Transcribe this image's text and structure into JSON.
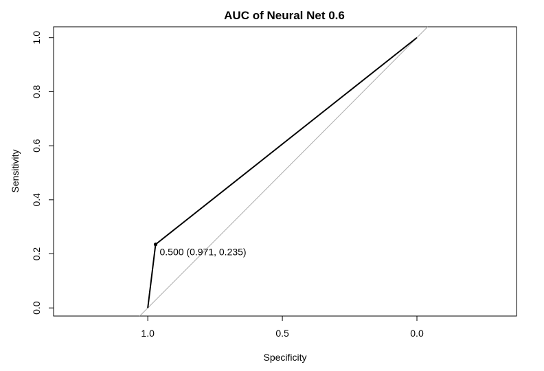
{
  "chart_data": {
    "type": "line",
    "title": "AUC of Neural Net 0.6",
    "xlabel": "Specificity",
    "ylabel": "Sensitivity",
    "x_reversed": true,
    "xlim": [
      1.35,
      -0.37
    ],
    "ylim": [
      -0.03,
      1.04
    ],
    "xticks": [
      1.0,
      0.5,
      0.0
    ],
    "xtick_labels": [
      "1.0",
      "0.5",
      "0.0"
    ],
    "yticks": [
      0.0,
      0.2,
      0.4,
      0.6,
      0.8,
      1.0
    ],
    "ytick_labels": [
      "0.0",
      "0.2",
      "0.4",
      "0.6",
      "0.8",
      "1.0"
    ],
    "series": [
      {
        "x": [
          1.0,
          0.971,
          0.0
        ],
        "y": [
          0.0,
          0.235,
          1.0
        ],
        "color": "#000000"
      }
    ],
    "reference_line": {
      "from": [
        1.0,
        0.0
      ],
      "to": [
        0.0,
        1.0
      ],
      "color": "#aaaaaa"
    },
    "threshold_point": {
      "x": 0.971,
      "y": 0.235
    },
    "annotation": "0.500 (0.971, 0.235)",
    "grid": false,
    "legend": "none"
  }
}
